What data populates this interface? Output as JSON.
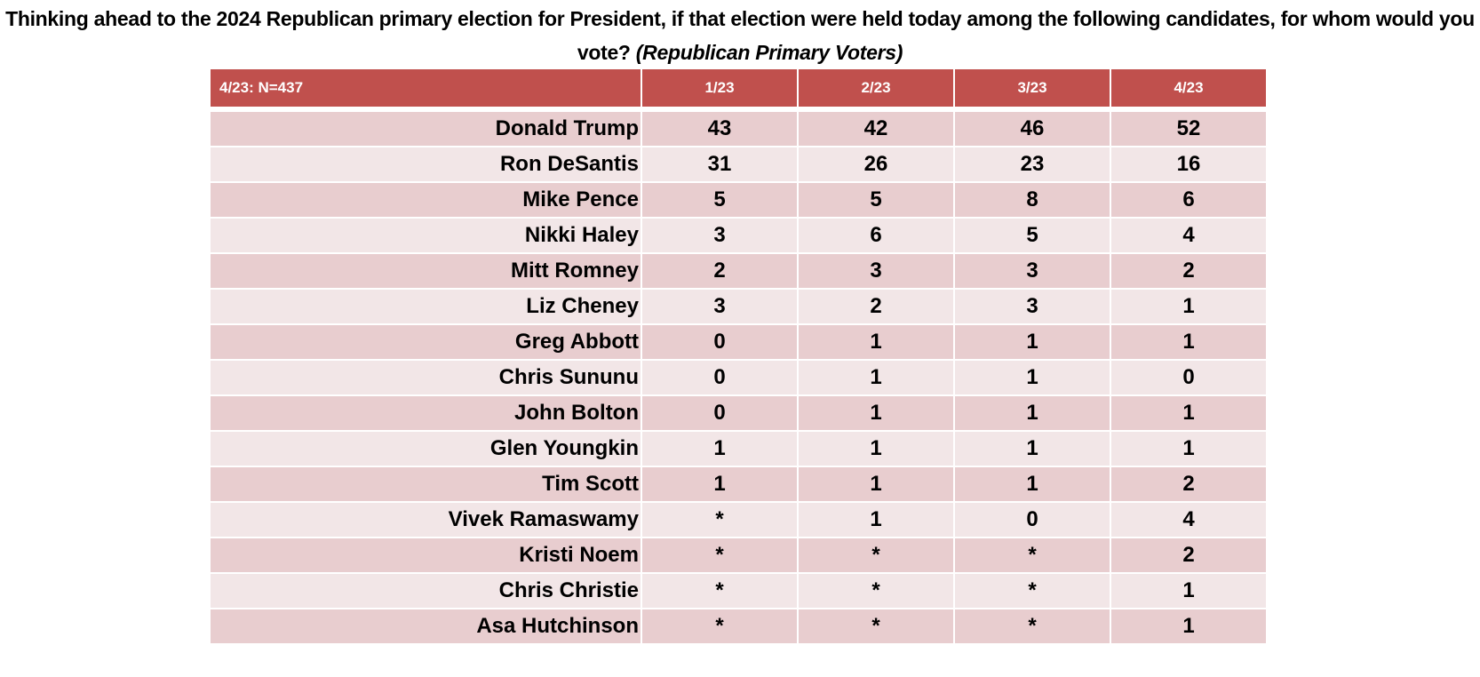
{
  "title": {
    "main": "Thinking ahead to the 2024 Republican primary election for President, if that election were held today among the following candidates, for whom would you vote?",
    "note": "(Republican Primary Voters)"
  },
  "table": {
    "header": [
      "4/23: N=437",
      "1/23",
      "2/23",
      "3/23",
      "4/23"
    ],
    "rows": [
      [
        "Donald Trump",
        43,
        42,
        46,
        52
      ],
      [
        "Ron DeSantis",
        31,
        26,
        23,
        16
      ],
      [
        "Mike Pence",
        5,
        5,
        8,
        6
      ],
      [
        "Nikki Haley",
        3,
        6,
        5,
        4
      ],
      [
        "Mitt Romney",
        2,
        3,
        3,
        2
      ],
      [
        "Liz Cheney",
        3,
        2,
        3,
        1
      ],
      [
        "Greg Abbott",
        0,
        1,
        1,
        1
      ],
      [
        "Chris Sununu",
        0,
        1,
        1,
        0
      ],
      [
        "John Bolton",
        0,
        1,
        1,
        1
      ],
      [
        "Glen Youngkin",
        1,
        1,
        1,
        1
      ],
      [
        "Tim Scott",
        1,
        1,
        1,
        2
      ],
      [
        "Vivek Ramaswamy",
        "*",
        1,
        0,
        4
      ],
      [
        "Kristi Noem",
        "*",
        "*",
        "*",
        2
      ],
      [
        "Chris Christie",
        "*",
        "*",
        "*",
        1
      ],
      [
        "Asa Hutchinson",
        "*",
        "*",
        "*",
        1
      ]
    ]
  }
}
